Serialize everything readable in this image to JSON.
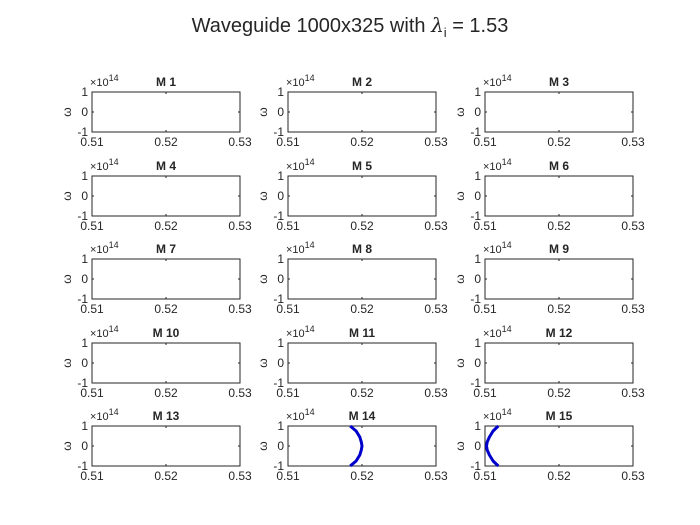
{
  "figure": {
    "title_prefix": "Waveguide 1000x325 with ",
    "title_symbol": "λ",
    "title_subscript": "i",
    "title_suffix": " = 1.53"
  },
  "chart_data": [
    {
      "type": "line",
      "title": "M 1",
      "ylabel": "ω",
      "y_exponent_label": "×10",
      "y_exponent_value": "14",
      "xlim": [
        0.51,
        0.53
      ],
      "ylim": [
        -100000000000000.0,
        100000000000000.0
      ],
      "xticks": [
        "0.51",
        "0.52",
        "0.53"
      ],
      "yticks": [
        "1",
        "0",
        "-1"
      ],
      "series": []
    },
    {
      "type": "line",
      "title": "M 2",
      "ylabel": "ω",
      "y_exponent_label": "×10",
      "y_exponent_value": "14",
      "xlim": [
        0.51,
        0.53
      ],
      "ylim": [
        -100000000000000.0,
        100000000000000.0
      ],
      "xticks": [
        "0.51",
        "0.52",
        "0.53"
      ],
      "yticks": [
        "1",
        "0",
        "-1"
      ],
      "series": []
    },
    {
      "type": "line",
      "title": "M 3",
      "ylabel": "ω",
      "y_exponent_label": "×10",
      "y_exponent_value": "14",
      "xlim": [
        0.51,
        0.53
      ],
      "ylim": [
        -100000000000000.0,
        100000000000000.0
      ],
      "xticks": [
        "0.51",
        "0.52",
        "0.53"
      ],
      "yticks": [
        "1",
        "0",
        "-1"
      ],
      "series": []
    },
    {
      "type": "line",
      "title": "M 4",
      "ylabel": "ω",
      "y_exponent_label": "×10",
      "y_exponent_value": "14",
      "xlim": [
        0.51,
        0.53
      ],
      "ylim": [
        -100000000000000.0,
        100000000000000.0
      ],
      "xticks": [
        "0.51",
        "0.52",
        "0.53"
      ],
      "yticks": [
        "1",
        "0",
        "-1"
      ],
      "series": []
    },
    {
      "type": "line",
      "title": "M 5",
      "ylabel": "ω",
      "y_exponent_label": "×10",
      "y_exponent_value": "14",
      "xlim": [
        0.51,
        0.53
      ],
      "ylim": [
        -100000000000000.0,
        100000000000000.0
      ],
      "xticks": [
        "0.51",
        "0.52",
        "0.53"
      ],
      "yticks": [
        "1",
        "0",
        "-1"
      ],
      "series": []
    },
    {
      "type": "line",
      "title": "M 6",
      "ylabel": "ω",
      "y_exponent_label": "×10",
      "y_exponent_value": "14",
      "xlim": [
        0.51,
        0.53
      ],
      "ylim": [
        -100000000000000.0,
        100000000000000.0
      ],
      "xticks": [
        "0.51",
        "0.52",
        "0.53"
      ],
      "yticks": [
        "1",
        "0",
        "-1"
      ],
      "series": []
    },
    {
      "type": "line",
      "title": "M 7",
      "ylabel": "ω",
      "y_exponent_label": "×10",
      "y_exponent_value": "14",
      "xlim": [
        0.51,
        0.53
      ],
      "ylim": [
        -100000000000000.0,
        100000000000000.0
      ],
      "xticks": [
        "0.51",
        "0.52",
        "0.53"
      ],
      "yticks": [
        "1",
        "0",
        "-1"
      ],
      "series": []
    },
    {
      "type": "line",
      "title": "M 8",
      "ylabel": "ω",
      "y_exponent_label": "×10",
      "y_exponent_value": "14",
      "xlim": [
        0.51,
        0.53
      ],
      "ylim": [
        -100000000000000.0,
        100000000000000.0
      ],
      "xticks": [
        "0.51",
        "0.52",
        "0.53"
      ],
      "yticks": [
        "1",
        "0",
        "-1"
      ],
      "series": []
    },
    {
      "type": "line",
      "title": "M 9",
      "ylabel": "ω",
      "y_exponent_label": "×10",
      "y_exponent_value": "14",
      "xlim": [
        0.51,
        0.53
      ],
      "ylim": [
        -100000000000000.0,
        100000000000000.0
      ],
      "xticks": [
        "0.51",
        "0.52",
        "0.53"
      ],
      "yticks": [
        "1",
        "0",
        "-1"
      ],
      "series": []
    },
    {
      "type": "line",
      "title": "M 10",
      "ylabel": "ω",
      "y_exponent_label": "×10",
      "y_exponent_value": "14",
      "xlim": [
        0.51,
        0.53
      ],
      "ylim": [
        -100000000000000.0,
        100000000000000.0
      ],
      "xticks": [
        "0.51",
        "0.52",
        "0.53"
      ],
      "yticks": [
        "1",
        "0",
        "-1"
      ],
      "series": []
    },
    {
      "type": "line",
      "title": "M 11",
      "ylabel": "ω",
      "y_exponent_label": "×10",
      "y_exponent_value": "14",
      "xlim": [
        0.51,
        0.53
      ],
      "ylim": [
        -100000000000000.0,
        100000000000000.0
      ],
      "xticks": [
        "0.51",
        "0.52",
        "0.53"
      ],
      "yticks": [
        "1",
        "0",
        "-1"
      ],
      "series": []
    },
    {
      "type": "line",
      "title": "M 12",
      "ylabel": "ω",
      "y_exponent_label": "×10",
      "y_exponent_value": "14",
      "xlim": [
        0.51,
        0.53
      ],
      "ylim": [
        -100000000000000.0,
        100000000000000.0
      ],
      "xticks": [
        "0.51",
        "0.52",
        "0.53"
      ],
      "yticks": [
        "1",
        "0",
        "-1"
      ],
      "series": []
    },
    {
      "type": "line",
      "title": "M 13",
      "ylabel": "ω",
      "y_exponent_label": "×10",
      "y_exponent_value": "14",
      "xlim": [
        0.51,
        0.53
      ],
      "ylim": [
        -100000000000000.0,
        100000000000000.0
      ],
      "xticks": [
        "0.51",
        "0.52",
        "0.53"
      ],
      "yticks": [
        "1",
        "0",
        "-1"
      ],
      "series": []
    },
    {
      "type": "line",
      "title": "M 14",
      "ylabel": "ω",
      "y_exponent_label": "×10",
      "y_exponent_value": "14",
      "xlim": [
        0.51,
        0.53
      ],
      "ylim": [
        -100000000000000.0,
        100000000000000.0
      ],
      "xticks": [
        "0.51",
        "0.52",
        "0.53"
      ],
      "yticks": [
        "1",
        "0",
        "-1"
      ],
      "series": [
        {
          "color": "#0000cc",
          "points": [
            [
              0.5184,
              -100000000000000.0
            ],
            [
              0.5192,
              -75000000000000.0
            ],
            [
              0.5197,
              -45000000000000.0
            ],
            [
              0.5199,
              -20000000000000.0
            ],
            [
              0.52,
              0.0
            ],
            [
              0.5199,
              20000000000000.0
            ],
            [
              0.5197,
              45000000000000.0
            ],
            [
              0.5192,
              75000000000000.0
            ],
            [
              0.5184,
              100000000000000.0
            ]
          ]
        }
      ]
    },
    {
      "type": "line",
      "title": "M 15",
      "ylabel": "ω",
      "y_exponent_label": "×10",
      "y_exponent_value": "14",
      "xlim": [
        0.51,
        0.53
      ],
      "ylim": [
        -100000000000000.0,
        100000000000000.0
      ],
      "xticks": [
        "0.51",
        "0.52",
        "0.53"
      ],
      "yticks": [
        "1",
        "0",
        "-1"
      ],
      "series": [
        {
          "color": "#0000cc",
          "points": [
            [
              0.5118,
              -100000000000000.0
            ],
            [
              0.5111,
              -75000000000000.0
            ],
            [
              0.5106,
              -45000000000000.0
            ],
            [
              0.5103,
              -20000000000000.0
            ],
            [
              0.5102,
              0.0
            ],
            [
              0.5103,
              20000000000000.0
            ],
            [
              0.5106,
              45000000000000.0
            ],
            [
              0.5111,
              75000000000000.0
            ],
            [
              0.5118,
              100000000000000.0
            ]
          ]
        }
      ]
    }
  ]
}
